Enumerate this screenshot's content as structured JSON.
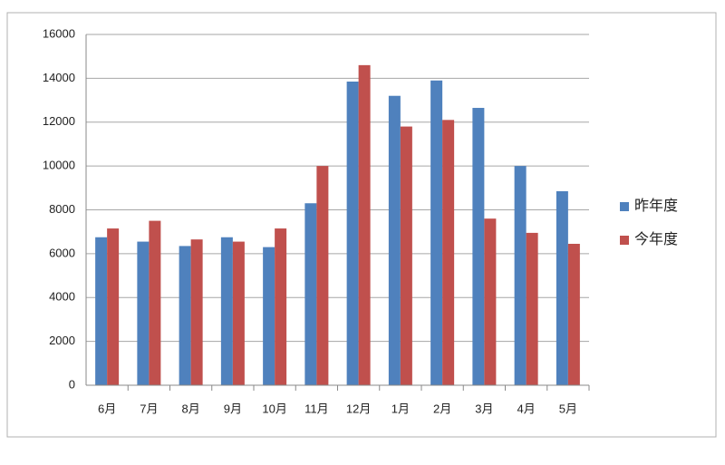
{
  "chart_data": {
    "type": "bar",
    "categories": [
      "6月",
      "7月",
      "8月",
      "9月",
      "10月",
      "11月",
      "12月",
      "1月",
      "2月",
      "3月",
      "4月",
      "5月"
    ],
    "series": [
      {
        "name": "昨年度",
        "color": "#4f81bd",
        "values": [
          6750,
          6550,
          6350,
          6750,
          6300,
          8300,
          13850,
          13200,
          13900,
          12650,
          10000,
          8850
        ]
      },
      {
        "name": "今年度",
        "color": "#c0504d",
        "values": [
          7150,
          7500,
          6650,
          6550,
          7150,
          10000,
          14600,
          11800,
          12100,
          7600,
          6950,
          6450
        ]
      }
    ],
    "ylim": [
      0,
      16000
    ],
    "yticks": [
      0,
      2000,
      4000,
      6000,
      8000,
      10000,
      12000,
      14000,
      16000
    ],
    "grid": true,
    "legend": "right"
  }
}
